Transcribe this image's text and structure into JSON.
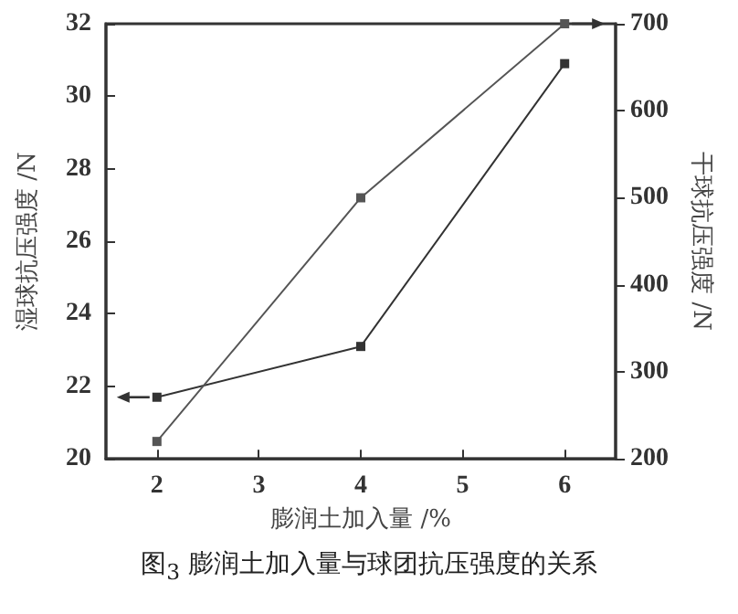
{
  "chart_data": {
    "type": "line",
    "xlabel": "膨润土加入量 /%",
    "ylabel": "湿球抗压强度 /N",
    "y2label": "干球抗压强度 /N",
    "x": [
      2,
      4,
      6
    ],
    "series": [
      {
        "color": "#333333",
        "values": [
          21.7,
          23.1,
          30.9
        ],
        "marker": "square"
      },
      {
        "color": "#555555",
        "values": [
          220,
          500,
          700
        ],
        "marker": "square",
        "axis": "y2"
      }
    ],
    "xlim": [
      1.5,
      6.5
    ],
    "xticks": [
      2,
      3,
      4,
      5,
      6
    ],
    "ylim": [
      20,
      32
    ],
    "yticks": [
      20,
      22,
      24,
      26,
      28,
      30,
      32
    ],
    "y2lim": [
      200,
      700
    ],
    "y2ticks": [
      200,
      300,
      400,
      500,
      600,
      700
    ],
    "grid": false,
    "line_style": "solid",
    "annotations": [
      "图$_{3}$  膨润土加入量与球团抗压强度的关系"
    ]
  }
}
